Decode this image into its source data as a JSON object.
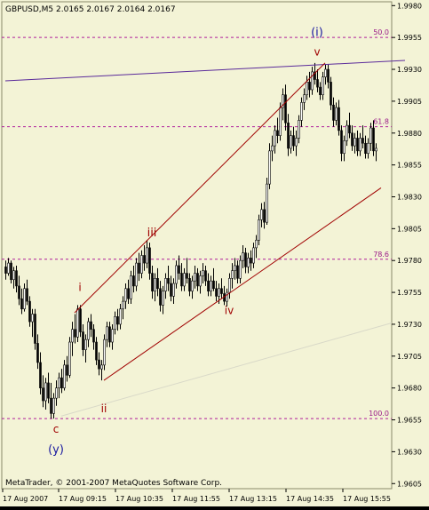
{
  "window": {
    "symbol_header": "GBPUSD,M5  2.0165 2.0167 2.0164 2.0167",
    "copyright": "MetaTrader, © 2001-2007 MetaQuotes Software Corp."
  },
  "chart_data": {
    "type": "candlestick",
    "title": "GBPUSD,M5  2.0165 2.0167 2.0164 2.0167",
    "symbol": "GBPUSD",
    "timeframe": "M5",
    "ohlc_header": {
      "open": 2.0165,
      "high": 2.0167,
      "low": 2.0164,
      "close": 2.0167
    },
    "y_ticks": [
      "1.9980",
      "1.9955",
      "1.9930",
      "1.9905",
      "1.9880",
      "1.9855",
      "1.9830",
      "1.9805",
      "1.9780",
      "1.9755",
      "1.9730",
      "1.9705",
      "1.9680",
      "1.9655",
      "1.9630",
      "1.9605"
    ],
    "x_ticks": [
      "17 Aug 2007",
      "17 Aug 09:15",
      "17 Aug 10:35",
      "17 Aug 11:55",
      "17 Aug 13:15",
      "17 Aug 14:35",
      "17 Aug 15:55"
    ],
    "ylim": [
      1.9601,
      1.9983
    ],
    "fib_levels": [
      {
        "label": "50.0",
        "price": 1.9955
      },
      {
        "label": "61.8",
        "price": 1.9885
      },
      {
        "label": "78.6",
        "price": 1.9781
      },
      {
        "label": "100.0",
        "price": 1.9656
      }
    ],
    "wave_labels": [
      {
        "text": "(i)",
        "bar": 117,
        "price": 1.9956,
        "color": "#1a1aa0"
      },
      {
        "text": "v",
        "bar": 117,
        "price": 1.9941,
        "color": "#a00000"
      },
      {
        "text": "iii",
        "bar": 55,
        "price": 1.9799,
        "color": "#a00000"
      },
      {
        "text": "i",
        "bar": 28,
        "price": 1.9756,
        "color": "#a00000"
      },
      {
        "text": "iv",
        "bar": 84,
        "price": 1.9738,
        "color": "#a00000"
      },
      {
        "text": "ii",
        "bar": 37,
        "price": 1.9661,
        "color": "#a00000"
      },
      {
        "text": "c",
        "bar": 19,
        "price": 1.9645,
        "color": "#a00000"
      },
      {
        "text": "(y)",
        "bar": 19,
        "price": 1.9629,
        "color": "#1a1aa0"
      }
    ],
    "trendlines": [
      {
        "color": "#5a2a9a",
        "from": {
          "bar": 0,
          "price": 1.9921
        },
        "to": {
          "bar": 150,
          "price": 1.9937
        }
      },
      {
        "color": "#a00000",
        "from": {
          "bar": 26,
          "price": 1.9739
        },
        "to": {
          "bar": 120,
          "price": 1.9935
        }
      },
      {
        "color": "#a00000",
        "from": {
          "bar": 37,
          "price": 1.9686
        },
        "to": {
          "bar": 141,
          "price": 1.9837
        }
      },
      {
        "color": "#d9d9c8",
        "from": {
          "bar": 21,
          "price": 1.9658
        },
        "to": {
          "bar": 145,
          "price": 1.9731
        }
      }
    ],
    "candles": [
      [
        1.9775,
        1.978,
        1.9765,
        1.977
      ],
      [
        1.977,
        1.9782,
        1.9768,
        1.9778
      ],
      [
        1.9778,
        1.978,
        1.9762,
        1.9765
      ],
      [
        1.9765,
        1.9775,
        1.9758,
        1.9772
      ],
      [
        1.9772,
        1.9776,
        1.9755,
        1.976
      ],
      [
        1.976,
        1.9768,
        1.9745,
        1.975
      ],
      [
        1.975,
        1.9758,
        1.9738,
        1.9742
      ],
      [
        1.9742,
        1.9762,
        1.974,
        1.9758
      ],
      [
        1.9758,
        1.9765,
        1.9745,
        1.9748
      ],
      [
        1.9748,
        1.9752,
        1.9728,
        1.9732
      ],
      [
        1.9732,
        1.9742,
        1.972,
        1.9738
      ],
      [
        1.9738,
        1.9742,
        1.971,
        1.9715
      ],
      [
        1.9715,
        1.9722,
        1.9695,
        1.97
      ],
      [
        1.97,
        1.9708,
        1.9675,
        1.968
      ],
      [
        1.968,
        1.969,
        1.9665,
        1.967
      ],
      [
        1.967,
        1.9688,
        1.9663,
        1.9684
      ],
      [
        1.9684,
        1.9692,
        1.9668,
        1.9672
      ],
      [
        1.9672,
        1.9684,
        1.9656,
        1.966
      ],
      [
        1.966,
        1.9676,
        1.9656,
        1.9672
      ],
      [
        1.9672,
        1.9686,
        1.9666,
        1.968
      ],
      [
        1.968,
        1.9692,
        1.9672,
        1.9688
      ],
      [
        1.9688,
        1.9695,
        1.9676,
        1.968
      ],
      [
        1.968,
        1.9702,
        1.9678,
        1.9698
      ],
      [
        1.9698,
        1.9705,
        1.9685,
        1.969
      ],
      [
        1.969,
        1.972,
        1.9688,
        1.9716
      ],
      [
        1.9716,
        1.9732,
        1.9705,
        1.9726
      ],
      [
        1.9726,
        1.9738,
        1.9715,
        1.972
      ],
      [
        1.972,
        1.9745,
        1.9716,
        1.9742
      ],
      [
        1.9742,
        1.9745,
        1.972,
        1.9724
      ],
      [
        1.9724,
        1.973,
        1.9705,
        1.971
      ],
      [
        1.971,
        1.9722,
        1.97,
        1.9718
      ],
      [
        1.9718,
        1.9735,
        1.9712,
        1.9732
      ],
      [
        1.9732,
        1.9738,
        1.972,
        1.9726
      ],
      [
        1.9726,
        1.973,
        1.971,
        1.9716
      ],
      [
        1.9716,
        1.972,
        1.9698,
        1.9702
      ],
      [
        1.9702,
        1.9708,
        1.969,
        1.9695
      ],
      [
        1.9695,
        1.9702,
        1.9686,
        1.9698
      ],
      [
        1.9698,
        1.9722,
        1.9694,
        1.9718
      ],
      [
        1.9718,
        1.9732,
        1.9712,
        1.9728
      ],
      [
        1.9728,
        1.9732,
        1.9712,
        1.9716
      ],
      [
        1.9716,
        1.973,
        1.971,
        1.9726
      ],
      [
        1.9726,
        1.974,
        1.9722,
        1.9736
      ],
      [
        1.9736,
        1.9742,
        1.9725,
        1.973
      ],
      [
        1.973,
        1.9746,
        1.9726,
        1.9742
      ],
      [
        1.9742,
        1.9752,
        1.9734,
        1.9748
      ],
      [
        1.9748,
        1.9762,
        1.9742,
        1.9758
      ],
      [
        1.9758,
        1.9765,
        1.9746,
        1.975
      ],
      [
        1.975,
        1.9772,
        1.9746,
        1.9768
      ],
      [
        1.9768,
        1.9776,
        1.9755,
        1.976
      ],
      [
        1.976,
        1.9782,
        1.9756,
        1.9778
      ],
      [
        1.9778,
        1.9786,
        1.9764,
        1.977
      ],
      [
        1.977,
        1.9788,
        1.9766,
        1.9784
      ],
      [
        1.9784,
        1.9792,
        1.9772,
        1.9778
      ],
      [
        1.9778,
        1.9796,
        1.9774,
        1.979
      ],
      [
        1.979,
        1.9794,
        1.9765,
        1.977
      ],
      [
        1.977,
        1.9776,
        1.975,
        1.9756
      ],
      [
        1.9756,
        1.977,
        1.9748,
        1.9766
      ],
      [
        1.9766,
        1.9774,
        1.9752,
        1.9758
      ],
      [
        1.9758,
        1.9764,
        1.974,
        1.9745
      ],
      [
        1.9745,
        1.976,
        1.9738,
        1.9756
      ],
      [
        1.9756,
        1.977,
        1.975,
        1.9766
      ],
      [
        1.9766,
        1.9776,
        1.9756,
        1.9762
      ],
      [
        1.9762,
        1.9768,
        1.9748,
        1.9752
      ],
      [
        1.9752,
        1.9766,
        1.9746,
        1.9762
      ],
      [
        1.9762,
        1.978,
        1.9758,
        1.9776
      ],
      [
        1.9776,
        1.9784,
        1.9765,
        1.977
      ],
      [
        1.977,
        1.9778,
        1.9756,
        1.976
      ],
      [
        1.976,
        1.9774,
        1.9756,
        1.977
      ],
      [
        1.977,
        1.9782,
        1.9762,
        1.9766
      ],
      [
        1.9766,
        1.977,
        1.9752,
        1.9756
      ],
      [
        1.9756,
        1.9768,
        1.975,
        1.9764
      ],
      [
        1.9764,
        1.9776,
        1.9758,
        1.977
      ],
      [
        1.977,
        1.9774,
        1.9756,
        1.976
      ],
      [
        1.976,
        1.9772,
        1.9754,
        1.9768
      ],
      [
        1.9768,
        1.9778,
        1.9762,
        1.9772
      ],
      [
        1.9772,
        1.9776,
        1.976,
        1.9764
      ],
      [
        1.9764,
        1.977,
        1.9752,
        1.9756
      ],
      [
        1.9756,
        1.9768,
        1.9752,
        1.9764
      ],
      [
        1.9764,
        1.9774,
        1.9756,
        1.9758
      ],
      [
        1.9758,
        1.9764,
        1.9748,
        1.9752
      ],
      [
        1.9752,
        1.9762,
        1.9746,
        1.9758
      ],
      [
        1.9758,
        1.9766,
        1.975,
        1.9754
      ],
      [
        1.9754,
        1.976,
        1.9745,
        1.9748
      ],
      [
        1.9748,
        1.9758,
        1.9744,
        1.9755
      ],
      [
        1.9755,
        1.977,
        1.975,
        1.9766
      ],
      [
        1.9766,
        1.9778,
        1.9758,
        1.9772
      ],
      [
        1.9772,
        1.9782,
        1.9765,
        1.9776
      ],
      [
        1.9776,
        1.978,
        1.9762,
        1.9766
      ],
      [
        1.9766,
        1.9784,
        1.9762,
        1.978
      ],
      [
        1.978,
        1.9792,
        1.9774,
        1.9786
      ],
      [
        1.9786,
        1.979,
        1.977,
        1.9775
      ],
      [
        1.9775,
        1.9786,
        1.977,
        1.9782
      ],
      [
        1.9782,
        1.9788,
        1.9772,
        1.9778
      ],
      [
        1.9778,
        1.9794,
        1.9774,
        1.979
      ],
      [
        1.979,
        1.98,
        1.9782,
        1.9796
      ],
      [
        1.9796,
        1.9816,
        1.9792,
        1.9812
      ],
      [
        1.9812,
        1.9825,
        1.9806,
        1.982
      ],
      [
        1.982,
        1.9826,
        1.9805,
        1.981
      ],
      [
        1.981,
        1.9845,
        1.9808,
        1.984
      ],
      [
        1.984,
        1.9872,
        1.9836,
        1.9866
      ],
      [
        1.9866,
        1.9878,
        1.9858,
        1.987
      ],
      [
        1.987,
        1.9886,
        1.9864,
        1.9882
      ],
      [
        1.9882,
        1.9892,
        1.9872,
        1.9878
      ],
      [
        1.9878,
        1.9904,
        1.9874,
        1.99
      ],
      [
        1.99,
        1.9915,
        1.989,
        1.991
      ],
      [
        1.991,
        1.9918,
        1.9882,
        1.9888
      ],
      [
        1.9888,
        1.9895,
        1.9862,
        1.9868
      ],
      [
        1.9868,
        1.9882,
        1.9864,
        1.9878
      ],
      [
        1.9878,
        1.9885,
        1.9866,
        1.987
      ],
      [
        1.987,
        1.9882,
        1.9862,
        1.9876
      ],
      [
        1.9876,
        1.9894,
        1.9872,
        1.989
      ],
      [
        1.989,
        1.9908,
        1.9885,
        1.9904
      ],
      [
        1.9904,
        1.9915,
        1.9898,
        1.991
      ],
      [
        1.991,
        1.9925,
        1.9906,
        1.992
      ],
      [
        1.992,
        1.9928,
        1.9908,
        1.9914
      ],
      [
        1.9914,
        1.9932,
        1.991,
        1.9928
      ],
      [
        1.9928,
        1.9935,
        1.9918,
        1.9922
      ],
      [
        1.9922,
        1.993,
        1.9912,
        1.9916
      ],
      [
        1.9916,
        1.992,
        1.9906,
        1.991
      ],
      [
        1.991,
        1.9928,
        1.9906,
        1.9924
      ],
      [
        1.9924,
        1.9934,
        1.9918,
        1.993
      ],
      [
        1.993,
        1.9934,
        1.9915,
        1.992
      ],
      [
        1.992,
        1.9924,
        1.9898,
        1.9902
      ],
      [
        1.9902,
        1.9908,
        1.9885,
        1.989
      ],
      [
        1.989,
        1.9904,
        1.9886,
        1.99
      ],
      [
        1.99,
        1.9906,
        1.9878,
        1.9882
      ],
      [
        1.9882,
        1.9886,
        1.9858,
        1.9864
      ],
      [
        1.9864,
        1.9878,
        1.9858,
        1.9874
      ],
      [
        1.9874,
        1.989,
        1.987,
        1.9886
      ],
      [
        1.9886,
        1.9896,
        1.9876,
        1.988
      ],
      [
        1.988,
        1.9886,
        1.9866,
        1.987
      ],
      [
        1.987,
        1.988,
        1.9864,
        1.9876
      ],
      [
        1.9876,
        1.9882,
        1.9862,
        1.9866
      ],
      [
        1.9866,
        1.988,
        1.9862,
        1.9876
      ],
      [
        1.9876,
        1.9886,
        1.9868,
        1.9872
      ],
      [
        1.9872,
        1.9878,
        1.986,
        1.9864
      ],
      [
        1.9864,
        1.9876,
        1.986,
        1.9872
      ],
      [
        1.9872,
        1.9888,
        1.9866,
        1.9884
      ],
      [
        1.9884,
        1.989,
        1.9862,
        1.9866
      ],
      [
        1.9866,
        1.9872,
        1.9858,
        1.9868
      ]
    ]
  }
}
